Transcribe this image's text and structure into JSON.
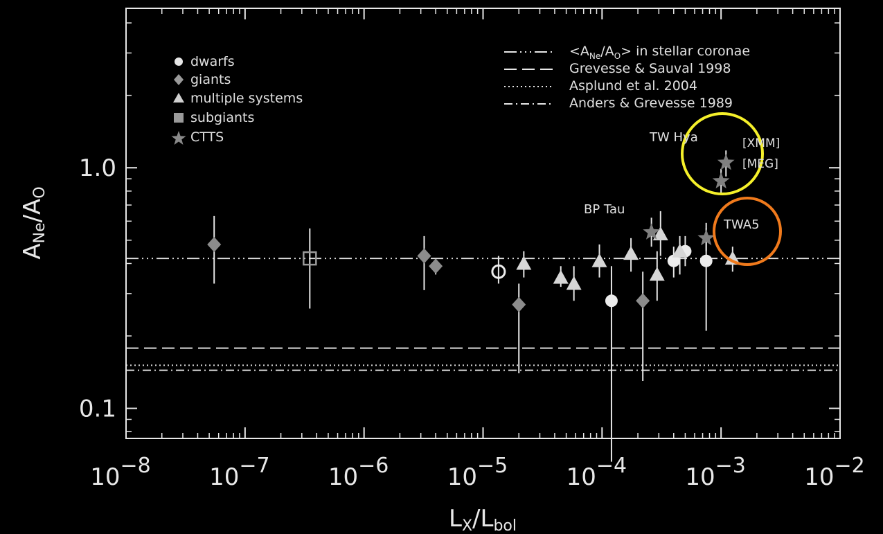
{
  "chart_data": {
    "type": "scatter",
    "xlabel_main": "L",
    "xlabel_sub1": "X",
    "xlabel_slash": "/",
    "xlabel_main2": "L",
    "xlabel_sub2": "bol",
    "ylabel_main": "A",
    "ylabel_sub1": "Ne",
    "ylabel_slash": "/",
    "ylabel_main2": "A",
    "ylabel_sub2": "O",
    "x_scale": "log",
    "y_scale": "log",
    "xlim": [
      1e-08,
      0.01
    ],
    "ylim": [
      0.075,
      4.6
    ],
    "x_ticks": [
      {
        "base": "10",
        "exp": "−8",
        "value": 1e-08
      },
      {
        "base": "10",
        "exp": "−7",
        "value": 1e-07
      },
      {
        "base": "10",
        "exp": "−6",
        "value": 1e-06
      },
      {
        "base": "10",
        "exp": "−5",
        "value": 1e-05
      },
      {
        "base": "10",
        "exp": "−4",
        "value": 0.0001
      },
      {
        "base": "10",
        "exp": "−3",
        "value": 0.001
      },
      {
        "base": "10",
        "exp": "−2",
        "value": 0.01
      }
    ],
    "y_ticks": [
      {
        "label": "1.0",
        "value": 1.0
      },
      {
        "label": "0.1",
        "value": 0.1
      }
    ],
    "legend_markers": [
      {
        "label": "dwarfs",
        "marker": "circle",
        "color": "#e6e6e6"
      },
      {
        "label": "giants",
        "marker": "diamond",
        "color": "#9a9a9a"
      },
      {
        "label": "multiple systems",
        "marker": "triangle",
        "color": "#d0d0d0"
      },
      {
        "label": "subgiants",
        "marker": "square",
        "color": "#9a9a9a"
      },
      {
        "label": "CTTS",
        "marker": "star",
        "color": "#8a8a8a"
      }
    ],
    "legend_lines": [
      {
        "label_pre": "<A",
        "label_sub1": "Ne",
        "label_mid": "/A",
        "label_sub2": "O",
        "label_post": "> in stellar coronae",
        "style": "dash-dot-dot-dot",
        "value": 0.42
      },
      {
        "label": "Grevesse & Sauval 1998",
        "style": "dashed",
        "value": 0.178
      },
      {
        "label": "Asplund et al. 2004",
        "style": "dotted",
        "value": 0.151
      },
      {
        "label": "Anders & Grevesse 1989",
        "style": "dash-dot",
        "value": 0.144
      }
    ],
    "annotations": {
      "tw_hya": "TW Hya",
      "xmm": "[XMM]",
      "meg": "[MEG]",
      "bp_tau": "BP Tau",
      "twa5": "TWA5"
    },
    "highlight_colors": {
      "yellow": "#f5f02a",
      "orange": "#f07a1c"
    },
    "series": [
      {
        "name": "dwarfs",
        "marker": "circle",
        "points": [
          {
            "x": 1.35e-05,
            "y": 0.37,
            "ylo": 0.33,
            "yhi": 0.43,
            "hollow": true
          },
          {
            "x": 0.00012,
            "y": 0.28,
            "ylo": 0.06,
            "yhi": 0.39
          },
          {
            "x": 0.0004,
            "y": 0.41,
            "ylo": 0.35,
            "yhi": 0.47
          },
          {
            "x": 0.0005,
            "y": 0.45,
            "ylo": 0.39,
            "yhi": 0.52
          },
          {
            "x": 0.00075,
            "y": 0.41,
            "ylo": 0.21,
            "yhi": 0.56
          }
        ]
      },
      {
        "name": "giants",
        "marker": "diamond",
        "points": [
          {
            "x": 5.5e-08,
            "y": 0.48,
            "ylo": 0.33,
            "yhi": 0.63
          },
          {
            "x": 3.2e-06,
            "y": 0.43,
            "ylo": 0.31,
            "yhi": 0.52
          },
          {
            "x": 4e-06,
            "y": 0.39,
            "ylo": 0.36,
            "yhi": 0.42
          },
          {
            "x": 2e-05,
            "y": 0.27,
            "ylo": 0.14,
            "yhi": 0.33
          },
          {
            "x": 0.00022,
            "y": 0.28,
            "ylo": 0.13,
            "yhi": 0.37
          }
        ]
      },
      {
        "name": "multiple systems",
        "marker": "triangle",
        "points": [
          {
            "x": 2.2e-05,
            "y": 0.4,
            "ylo": 0.35,
            "yhi": 0.45
          },
          {
            "x": 4.5e-05,
            "y": 0.35,
            "ylo": 0.32,
            "yhi": 0.39
          },
          {
            "x": 5.8e-05,
            "y": 0.33,
            "ylo": 0.28,
            "yhi": 0.39
          },
          {
            "x": 9.5e-05,
            "y": 0.41,
            "ylo": 0.35,
            "yhi": 0.48
          },
          {
            "x": 0.000175,
            "y": 0.44,
            "ylo": 0.37,
            "yhi": 0.51
          },
          {
            "x": 0.00029,
            "y": 0.36,
            "ylo": 0.28,
            "yhi": 0.45
          },
          {
            "x": 0.00031,
            "y": 0.53,
            "ylo": 0.43,
            "yhi": 0.66
          },
          {
            "x": 0.00045,
            "y": 0.45,
            "ylo": 0.36,
            "yhi": 0.52
          },
          {
            "x": 0.00125,
            "y": 0.42,
            "ylo": 0.37,
            "yhi": 0.47
          }
        ]
      },
      {
        "name": "subgiants",
        "marker": "square",
        "points": [
          {
            "x": 3.5e-07,
            "y": 0.42,
            "ylo": 0.26,
            "yhi": 0.56,
            "hollow": true
          }
        ]
      },
      {
        "name": "CTTS",
        "marker": "star",
        "points": [
          {
            "x": 0.00026,
            "y": 0.54,
            "ylo": 0.47,
            "yhi": 0.62
          },
          {
            "x": 0.00075,
            "y": 0.51,
            "ylo": 0.45,
            "yhi": 0.59
          },
          {
            "x": 0.0011,
            "y": 1.05,
            "ylo": 0.92,
            "yhi": 1.18
          },
          {
            "x": 0.001,
            "y": 0.88,
            "ylo": 0.78,
            "yhi": 0.99
          }
        ]
      }
    ]
  }
}
